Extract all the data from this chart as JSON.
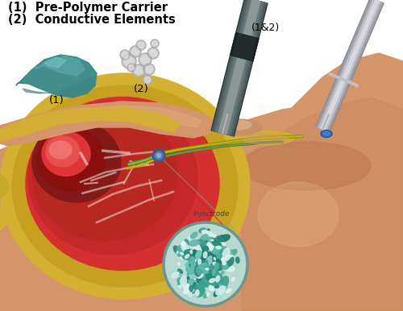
{
  "background_color": "#ffffff",
  "label1": "(1)  Pre-Polymer Carrier",
  "label2": "(2)  Conductive Elements",
  "label_1": "(1)",
  "label_2": "(2)",
  "label_12": "(1&2)",
  "label_injectrode": "Injectrode",
  "text_color": "#000000",
  "fig_width": 5.0,
  "fig_height": 3.86,
  "skin_light": "#d4956a",
  "skin_mid": "#c8845a",
  "skin_dark": "#b87048",
  "fat_yellow": "#d4b030",
  "fat_light": "#e8d060",
  "muscle_red": "#b82820",
  "muscle_bright": "#d43030",
  "muscle_dark": "#7a1818",
  "muscle_pink": "#e05050",
  "connective_white": "#f0e0d8",
  "nerve_yellow": "#b8b800",
  "nerve_green": "#608040",
  "needle1_dark": "#505060",
  "needle1_mid": "#808090",
  "needle1_light": "#a8a8b8",
  "needle2_dark": "#909098",
  "needle2_mid": "#b0b0b8",
  "needle2_light": "#d0d0d8",
  "syringe1_body": "#6a7a7a",
  "syringe1_dark": "#3a4a4a",
  "inj_bg": "#b8d8d0",
  "inj_border": "#6a9890",
  "inj_teal1": "#2a8878",
  "inj_teal2": "#40a090",
  "inj_teal3": "#60b8a8",
  "inj_white": "#e0f0ec",
  "carrier_dark": "#2a6e6e",
  "carrier_mid": "#3a8888",
  "carrier_light": "#5aacac",
  "carrier_highlight": "#7ac8c8"
}
